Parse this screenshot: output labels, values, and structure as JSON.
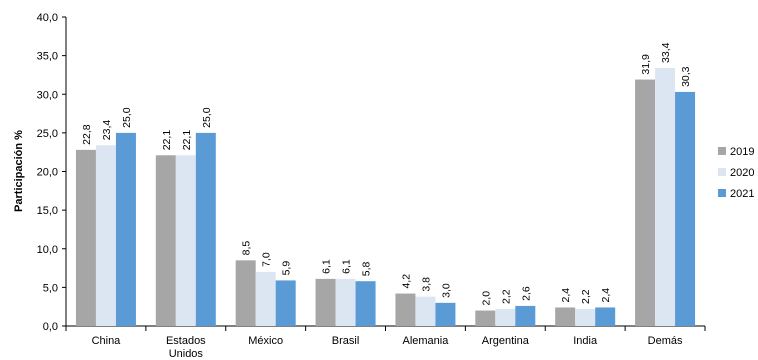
{
  "chart_data": {
    "type": "bar",
    "title": "",
    "xlabel": "",
    "ylabel": "Participación %",
    "ylim": [
      0,
      40
    ],
    "yticks": [
      "0,0",
      "5,0",
      "10,0",
      "15,0",
      "20,0",
      "25,0",
      "30,0",
      "35,0",
      "40,0"
    ],
    "categories": [
      "China",
      "Estados Unidos",
      "México",
      "Brasil",
      "Alemania",
      "Argentina",
      "India",
      "Demás"
    ],
    "grid": false,
    "legend_position": "right",
    "series": [
      {
        "name": "2019",
        "color": "#a6a6a6",
        "values": [
          22.8,
          22.1,
          8.5,
          6.1,
          4.2,
          2.0,
          2.4,
          31.9
        ],
        "labels": [
          "22,8",
          "22,1",
          "8,5",
          "6,1",
          "4,2",
          "2,0",
          "2,4",
          "31,9"
        ]
      },
      {
        "name": "2020",
        "color": "#dce6f2",
        "values": [
          23.4,
          22.1,
          7.0,
          6.1,
          3.8,
          2.2,
          2.2,
          33.4
        ],
        "labels": [
          "23,4",
          "22,1",
          "7,0",
          "6,1",
          "3,8",
          "2,2",
          "2,2",
          "33,4"
        ]
      },
      {
        "name": "2021",
        "color": "#5b9bd5",
        "values": [
          25.0,
          25.0,
          5.9,
          5.8,
          3.0,
          2.6,
          2.4,
          30.3
        ],
        "labels": [
          "25,0",
          "25,0",
          "5,9",
          "5,8",
          "3,0",
          "2,6",
          "2,4",
          "30,3"
        ]
      }
    ]
  }
}
